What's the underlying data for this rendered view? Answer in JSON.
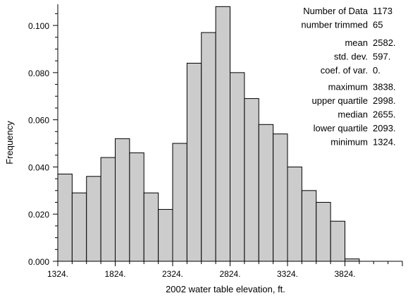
{
  "chart_data": {
    "type": "bar",
    "xlabel": "2002 water table elevation, ft.",
    "ylabel": "Frequency",
    "x_ticks": [
      "1324.",
      "1824.",
      "2324.",
      "2824.",
      "3324.",
      "3824."
    ],
    "x_tick_values": [
      1324,
      1824,
      2324,
      2824,
      3324,
      3824
    ],
    "y_ticks": [
      "0.000",
      "0.020",
      "0.040",
      "0.060",
      "0.080",
      "0.100"
    ],
    "y_tick_values": [
      0.0,
      0.02,
      0.04,
      0.06,
      0.08,
      0.1
    ],
    "xlim": [
      1324,
      4324
    ],
    "ylim": [
      0,
      0.109
    ],
    "bin_width": 125,
    "bin_starts": [
      1324,
      1449,
      1574,
      1699,
      1824,
      1949,
      2074,
      2199,
      2324,
      2449,
      2574,
      2699,
      2824,
      2949,
      3074,
      3199,
      3324,
      3449,
      3574,
      3699,
      3824
    ],
    "values": [
      0.037,
      0.029,
      0.036,
      0.044,
      0.052,
      0.046,
      0.029,
      0.022,
      0.05,
      0.084,
      0.097,
      0.108,
      0.08,
      0.069,
      0.058,
      0.054,
      0.04,
      0.03,
      0.025,
      0.017,
      0.001
    ],
    "bar_color": "#cccccc",
    "grid": false,
    "stats": [
      {
        "label": "Number of Data",
        "value": "1173"
      },
      {
        "label": "number trimmed",
        "value": "65"
      },
      {
        "label": "mean",
        "value": "2582."
      },
      {
        "label": "std. dev.",
        "value": "597."
      },
      {
        "label": "coef. of var.",
        "value": "0."
      },
      {
        "label": "maximum",
        "value": "3838."
      },
      {
        "label": "upper quartile",
        "value": "2998."
      },
      {
        "label": "median",
        "value": "2655."
      },
      {
        "label": "lower quartile",
        "value": "2093."
      },
      {
        "label": "minimum",
        "value": "1324."
      }
    ]
  }
}
